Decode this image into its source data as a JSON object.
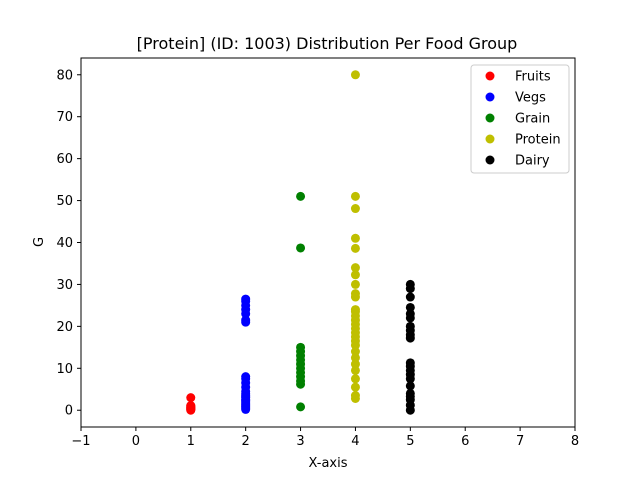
{
  "chart_data": {
    "type": "scatter",
    "title": "[Protein] (ID: 1003) Distribution Per Food Group",
    "xlabel": "X-axis",
    "ylabel": "G",
    "xlim": [
      -1,
      8
    ],
    "ylim": [
      -4,
      84
    ],
    "x_ticks": [
      -1,
      0,
      1,
      2,
      3,
      4,
      5,
      6,
      7,
      8
    ],
    "y_ticks": [
      0,
      10,
      20,
      30,
      40,
      50,
      60,
      70,
      80
    ],
    "grid": false,
    "legend_position": "top-right",
    "series": [
      {
        "name": "Fruits",
        "color": "#ff0000",
        "x": 1,
        "values": [
          0.0,
          0.1,
          0.2,
          0.3,
          0.4,
          0.5,
          0.6,
          0.7,
          0.9,
          1.0,
          1.1,
          3.0
        ]
      },
      {
        "name": "Vegs",
        "color": "#0000ff",
        "x": 2,
        "values": [
          0.2,
          0.5,
          0.8,
          1.0,
          1.3,
          1.6,
          2.0,
          2.3,
          2.6,
          3.0,
          3.3,
          3.6,
          4.0,
          4.5,
          5.5,
          6.5,
          7.5,
          8.0,
          21.0,
          21.5,
          23.0,
          24.0,
          25.0,
          26.0,
          26.5
        ]
      },
      {
        "name": "Grain",
        "color": "#008000",
        "x": 3,
        "values": [
          0.8,
          6.2,
          7.0,
          8.0,
          9.0,
          10.0,
          11.0,
          12.0,
          13.0,
          14.0,
          15.0,
          38.7,
          51.0
        ]
      },
      {
        "name": "Protein",
        "color": "#bfbf00",
        "x": 4,
        "values": [
          2.8,
          3.5,
          5.5,
          7.5,
          9.5,
          11.0,
          12.5,
          14.0,
          15.5,
          16.5,
          17.5,
          18.5,
          19.5,
          20.5,
          21.5,
          22.5,
          23.5,
          24.0,
          27.0,
          27.8,
          30.0,
          32.3,
          34.0,
          38.6,
          41.0,
          48.1,
          51.0,
          80.0
        ]
      },
      {
        "name": "Dairy",
        "color": "#000000",
        "x": 5,
        "values": [
          0.0,
          1.2,
          2.5,
          3.3,
          4.0,
          5.8,
          7.5,
          8.5,
          9.5,
          10.5,
          11.3,
          17.2,
          18.0,
          19.0,
          20.0,
          22.0,
          23.0,
          24.5,
          27.0,
          29.0,
          30.0
        ]
      }
    ]
  }
}
